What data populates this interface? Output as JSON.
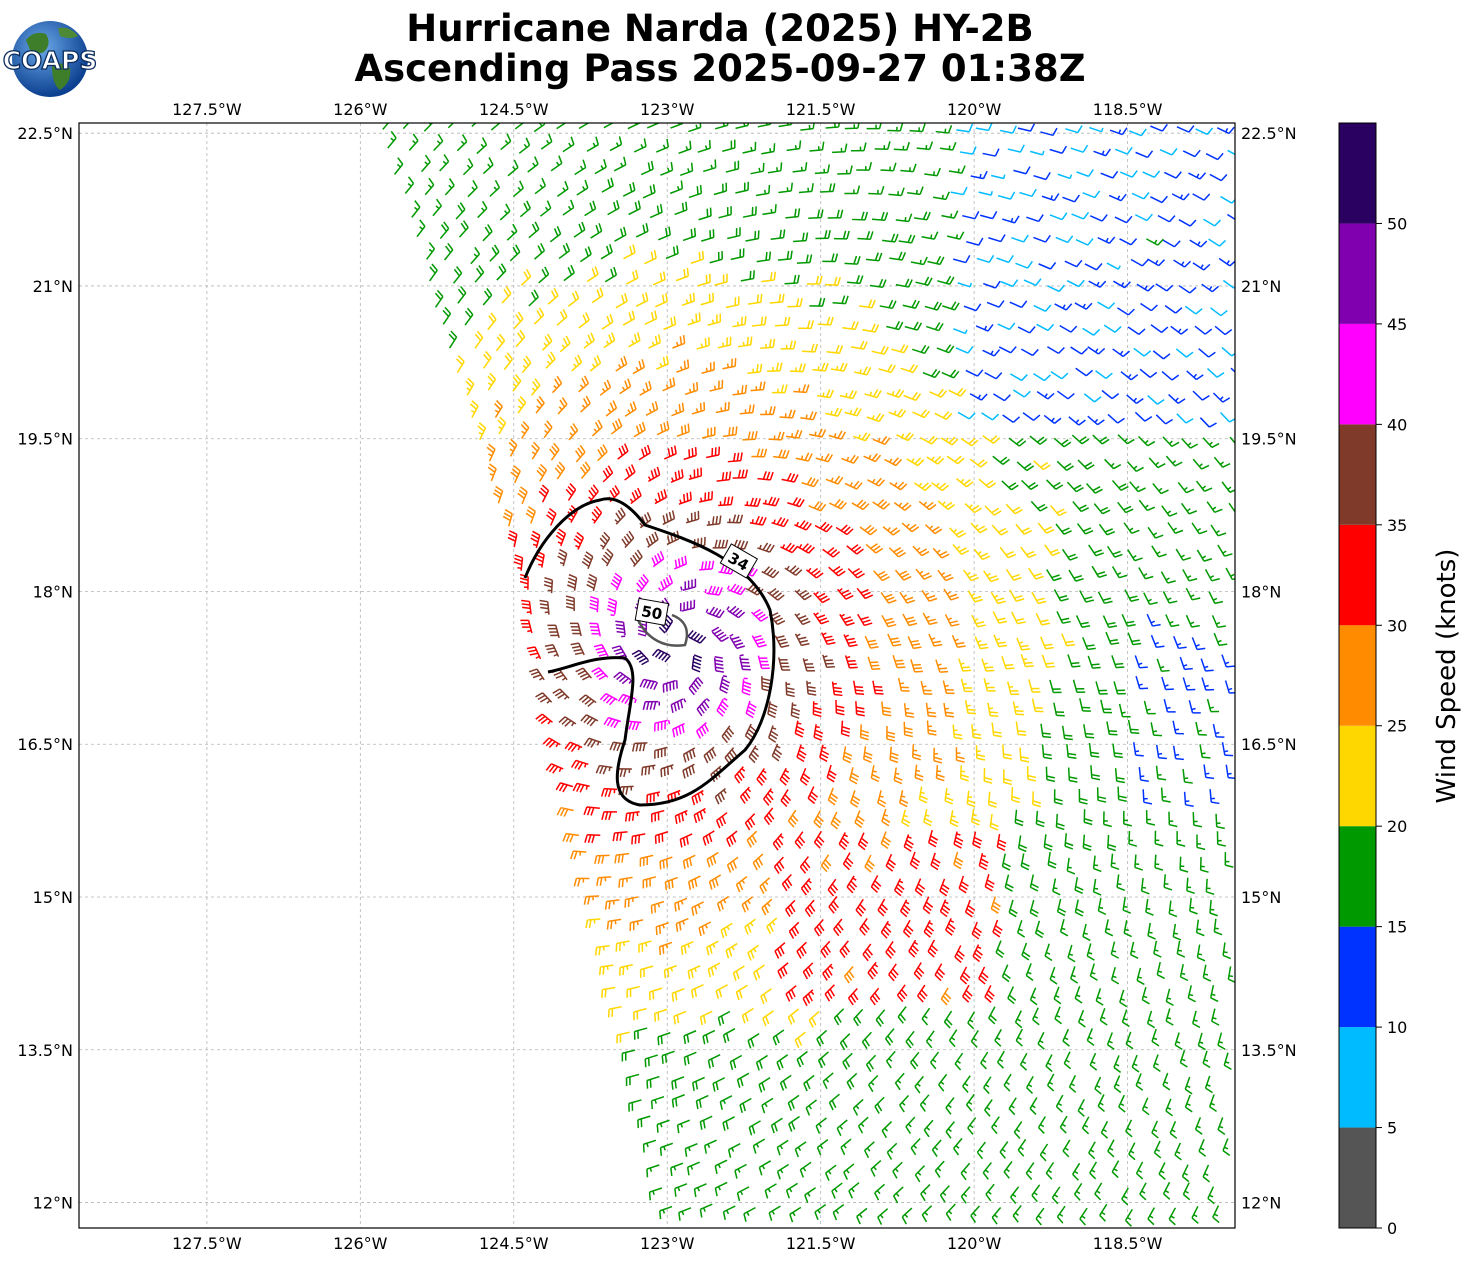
{
  "title": {
    "line1": "Hurricane Narda (2025) HY-2B",
    "line2": "Ascending Pass 2025-09-27 01:38Z"
  },
  "logo": {
    "text": "COAPS"
  },
  "map": {
    "lon_range": [
      -128.75,
      -117.45
    ],
    "lat_range": [
      11.75,
      22.6
    ],
    "lon_ticks": [
      -127.5,
      -126,
      -124.5,
      -123,
      -121.5,
      -120,
      -118.5
    ],
    "lat_ticks": [
      12,
      13.5,
      15,
      16.5,
      18,
      19.5,
      21,
      22.5
    ],
    "lon_tick_labels": [
      "127.5°W",
      "126°W",
      "124.5°W",
      "123°W",
      "121.5°W",
      "120°W",
      "118.5°W"
    ],
    "lat_tick_labels": [
      "12°N",
      "13.5°N",
      "15°N",
      "16.5°N",
      "18°N",
      "19.5°N",
      "21°N",
      "22.5°N"
    ],
    "gridlines": true,
    "storm_center": {
      "lon": -122.9,
      "lat": 17.45
    },
    "contours": [
      {
        "label": "34",
        "label_lon": -122.3,
        "label_lat": 18.3
      },
      {
        "label": "50",
        "label_lon": -123.15,
        "label_lat": 17.8
      }
    ]
  },
  "colorbar": {
    "label": "Wind Speed (knots)",
    "tick_labels": [
      "0",
      "5",
      "10",
      "15",
      "20",
      "25",
      "30",
      "35",
      "40",
      "45",
      "50"
    ],
    "bins": [
      {
        "min": 0,
        "max": 5,
        "color": "#555555"
      },
      {
        "min": 5,
        "max": 10,
        "color": "#00bbff"
      },
      {
        "min": 10,
        "max": 15,
        "color": "#0033ff"
      },
      {
        "min": 15,
        "max": 20,
        "color": "#009900"
      },
      {
        "min": 20,
        "max": 25,
        "color": "#ffd700"
      },
      {
        "min": 25,
        "max": 30,
        "color": "#ff8c00"
      },
      {
        "min": 30,
        "max": 35,
        "color": "#ff0000"
      },
      {
        "min": 35,
        "max": 40,
        "color": "#7f3a2a"
      },
      {
        "min": 40,
        "max": 45,
        "color": "#ff00ff"
      },
      {
        "min": 45,
        "max": 50,
        "color": "#8000b0"
      },
      {
        "min": 50,
        "max": 55,
        "color": "#2a0060"
      }
    ]
  }
}
